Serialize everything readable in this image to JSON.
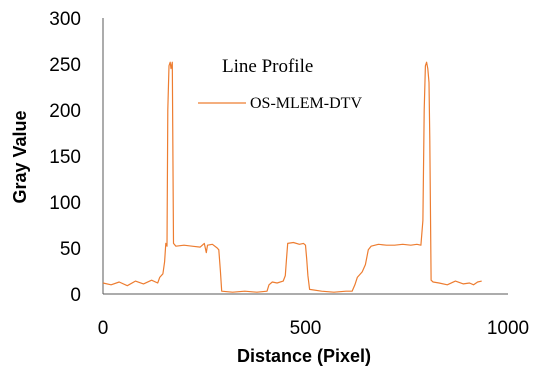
{
  "chart_data": {
    "type": "line",
    "title": "Line Profile",
    "xlabel": "Distance (Pixel)",
    "ylabel": "Gray Value",
    "xlim": [
      0,
      1000
    ],
    "ylim": [
      0,
      300
    ],
    "x_ticks": [
      "0",
      "500",
      "1000"
    ],
    "y_ticks": [
      "0",
      "50",
      "100",
      "150",
      "200",
      "250",
      "300"
    ],
    "grid": false,
    "legend_position": "top-right",
    "series": [
      {
        "name": "OS-MLEM-DTV",
        "color": "#ED7D31",
        "points": [
          [
            0,
            12
          ],
          [
            20,
            10
          ],
          [
            40,
            13
          ],
          [
            60,
            9
          ],
          [
            80,
            14
          ],
          [
            100,
            11
          ],
          [
            120,
            15
          ],
          [
            135,
            12
          ],
          [
            140,
            18
          ],
          [
            148,
            22
          ],
          [
            152,
            35
          ],
          [
            155,
            55
          ],
          [
            158,
            52
          ],
          [
            160,
            200
          ],
          [
            163,
            248
          ],
          [
            166,
            252
          ],
          [
            168,
            245
          ],
          [
            171,
            252
          ],
          [
            174,
            55
          ],
          [
            180,
            52
          ],
          [
            200,
            53
          ],
          [
            220,
            52
          ],
          [
            240,
            51
          ],
          [
            250,
            55
          ],
          [
            255,
            45
          ],
          [
            258,
            53
          ],
          [
            270,
            54
          ],
          [
            282,
            50
          ],
          [
            286,
            48
          ],
          [
            290,
            25
          ],
          [
            293,
            3
          ],
          [
            320,
            2
          ],
          [
            350,
            3
          ],
          [
            380,
            2
          ],
          [
            405,
            3
          ],
          [
            410,
            10
          ],
          [
            418,
            13
          ],
          [
            430,
            12
          ],
          [
            445,
            14
          ],
          [
            450,
            20
          ],
          [
            453,
            38
          ],
          [
            456,
            55
          ],
          [
            470,
            56
          ],
          [
            485,
            54
          ],
          [
            495,
            55
          ],
          [
            500,
            53
          ],
          [
            503,
            38
          ],
          [
            506,
            20
          ],
          [
            510,
            5
          ],
          [
            540,
            3
          ],
          [
            570,
            2
          ],
          [
            600,
            3
          ],
          [
            615,
            3
          ],
          [
            622,
            10
          ],
          [
            628,
            18
          ],
          [
            640,
            24
          ],
          [
            648,
            32
          ],
          [
            655,
            48
          ],
          [
            662,
            52
          ],
          [
            680,
            54
          ],
          [
            700,
            53
          ],
          [
            720,
            53
          ],
          [
            740,
            54
          ],
          [
            760,
            53
          ],
          [
            775,
            54
          ],
          [
            785,
            53
          ],
          [
            790,
            80
          ],
          [
            793,
            200
          ],
          [
            796,
            248
          ],
          [
            799,
            252
          ],
          [
            802,
            245
          ],
          [
            805,
            230
          ],
          [
            807,
            168
          ],
          [
            810,
            15
          ],
          [
            815,
            13
          ],
          [
            830,
            12
          ],
          [
            850,
            10
          ],
          [
            870,
            14
          ],
          [
            890,
            11
          ],
          [
            905,
            12
          ],
          [
            915,
            10
          ],
          [
            925,
            13
          ],
          [
            935,
            14
          ]
        ]
      }
    ]
  }
}
